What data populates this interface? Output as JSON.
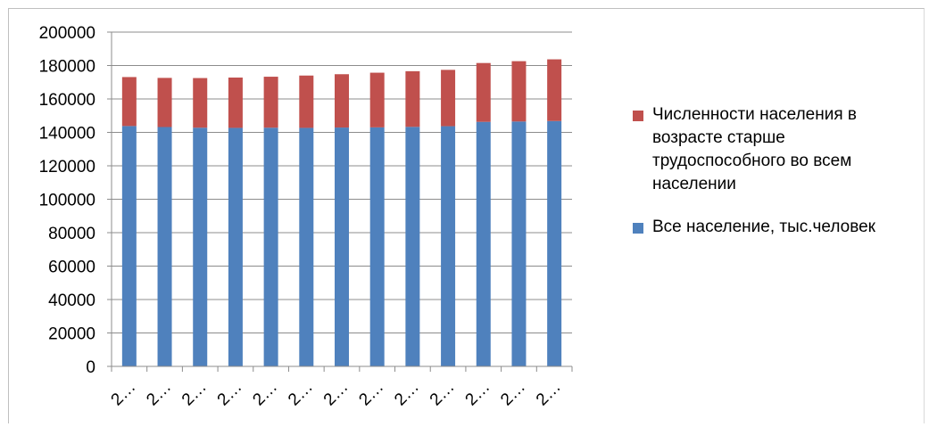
{
  "chart_data": {
    "type": "bar",
    "stacked": true,
    "categories": [
      "2…",
      "2…",
      "2…",
      "2…",
      "2…",
      "2…",
      "2…",
      "2…",
      "2…",
      "2…",
      "2…",
      "2…",
      "2…"
    ],
    "series": [
      {
        "name": "Все население, тыс.человек",
        "color": "#4f81bd",
        "values": [
          143800,
          143200,
          142800,
          142700,
          142800,
          142700,
          142900,
          143000,
          143300,
          143700,
          146300,
          146500,
          146800
        ]
      },
      {
        "name": "Численности населения в возрасте старше трудоспособного во всем населении",
        "color": "#c0504d",
        "values": [
          29300,
          29400,
          29700,
          30100,
          30500,
          31300,
          31900,
          32700,
          33300,
          33700,
          35200,
          36100,
          36900
        ]
      }
    ],
    "ylim": [
      0,
      200000
    ],
    "yticks": [
      0,
      20000,
      40000,
      60000,
      80000,
      100000,
      120000,
      140000,
      160000,
      180000,
      200000
    ],
    "grid": true,
    "legend_position": "right"
  }
}
